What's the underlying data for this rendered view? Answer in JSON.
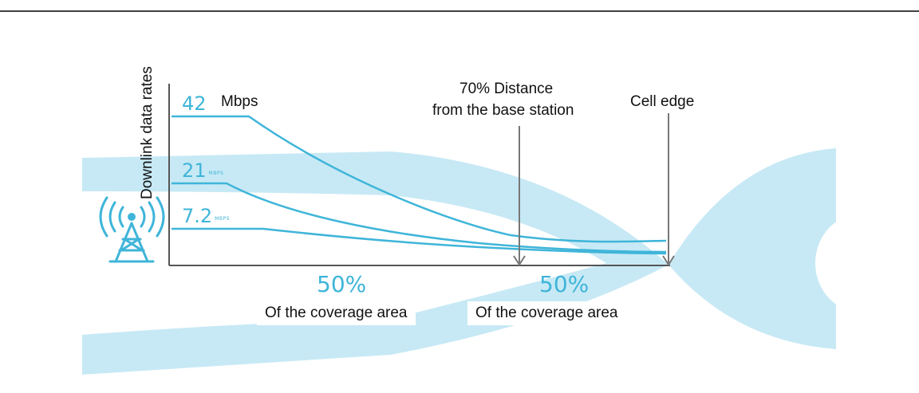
{
  "diagram": {
    "y_axis_label": "Downlink data rates",
    "unit_label": "Mbps",
    "rates": [
      {
        "value": "42",
        "unit": ""
      },
      {
        "value": "21",
        "unit": "MBPS"
      },
      {
        "value": "7.2",
        "unit": "MBPS"
      }
    ],
    "annotations": {
      "distance_70_line1": "70% Distance",
      "distance_70_line2": "from the base station",
      "cell_edge": "Cell edge"
    },
    "coverage": [
      {
        "percent": "50%",
        "label": "Of the coverage area"
      },
      {
        "percent": "50%",
        "label": "Of the coverage area"
      }
    ],
    "colors": {
      "coverage_fill": "#c7e9f5",
      "curve": "#3fb5d9",
      "axis": "#555555",
      "text": "#111111"
    },
    "icons": [
      "antenna-tower-icon"
    ]
  }
}
